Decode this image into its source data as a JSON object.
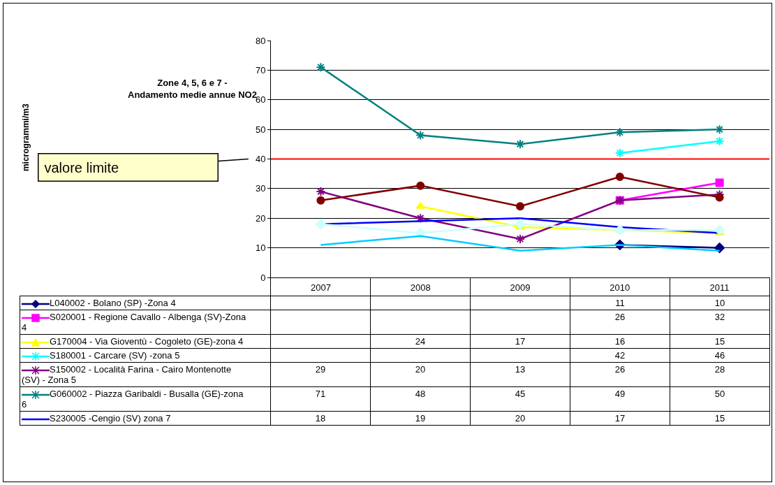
{
  "chart_data": {
    "type": "line",
    "title": "Zone 4, 5, 6 e 7 -\nAndamento medie annue NO2",
    "categories": [
      "2007",
      "2008",
      "2009",
      "2010",
      "2011"
    ],
    "ylim": [
      0,
      80
    ],
    "yticks": [
      0,
      10,
      20,
      30,
      40,
      50,
      60,
      70,
      80
    ],
    "grid": "y",
    "legend": "bottom",
    "annotations": [
      "microgrammi/m3",
      "valore limite"
    ],
    "ref_lines": [
      {
        "axis": "y",
        "value": 40,
        "color": "#ff0000"
      }
    ],
    "series": [
      {
        "name": "L040002 - Bolano (SP) -Zona 4",
        "color": "#000080",
        "marker": "diamond",
        "values": [
          null,
          null,
          null,
          11,
          10
        ],
        "value_labels": [
          null,
          null,
          null,
          "11",
          "10"
        ]
      },
      {
        "name": "S020001 - Regione Cavallo - Albenga (SV)-Zona 4",
        "color": "#ff00ff",
        "marker": "square",
        "values": [
          null,
          null,
          null,
          26,
          32
        ],
        "value_labels": [
          null,
          null,
          null,
          "26",
          "32"
        ]
      },
      {
        "name": "G170004 - Via Gioventù - Cogoleto (GE)-zona 4",
        "color": "#ffff00",
        "marker": "triangle",
        "values": [
          null,
          24,
          17,
          16,
          15
        ],
        "value_labels": [
          null,
          "24",
          "17",
          "16",
          "15"
        ]
      },
      {
        "name": "S180001 - Carcare (SV) -zona 5",
        "color": "#00ffff",
        "marker": "cross",
        "values": [
          null,
          null,
          null,
          42,
          46
        ],
        "value_labels": [
          null,
          null,
          null,
          "42",
          "46"
        ]
      },
      {
        "name": "S150002 - Località Farina - Cairo Montenotte (SV) - Zona 5",
        "color": "#800080",
        "marker": "cross",
        "values": [
          29,
          20,
          13,
          26,
          28
        ],
        "value_labels": [
          "29",
          "20",
          "13",
          "26",
          "28"
        ]
      },
      {
        "name": "G060002 - Piazza Garibaldi - Busalla (GE)-zona 6",
        "color": "#008080",
        "marker": "cross",
        "values": [
          71,
          48,
          45,
          49,
          50
        ],
        "value_labels": [
          "71",
          "48",
          "45",
          "49",
          "50"
        ]
      },
      {
        "name": "S230005 -Cengio (SV) zona 7",
        "color": "#0000ff",
        "marker": "none",
        "values": [
          18,
          19,
          20,
          17,
          15
        ],
        "value_labels": [
          "18",
          "19",
          "20",
          "17",
          "15"
        ]
      },
      {
        "color": "#800000",
        "marker": "circle",
        "values": [
          26,
          31,
          24,
          34,
          27
        ]
      },
      {
        "color": "#ccffff",
        "marker": "diamond",
        "values": [
          18,
          15,
          18,
          16,
          16
        ]
      },
      {
        "color": "#00ccff",
        "marker": "none",
        "values": [
          11,
          14,
          9,
          11,
          9
        ]
      }
    ]
  }
}
